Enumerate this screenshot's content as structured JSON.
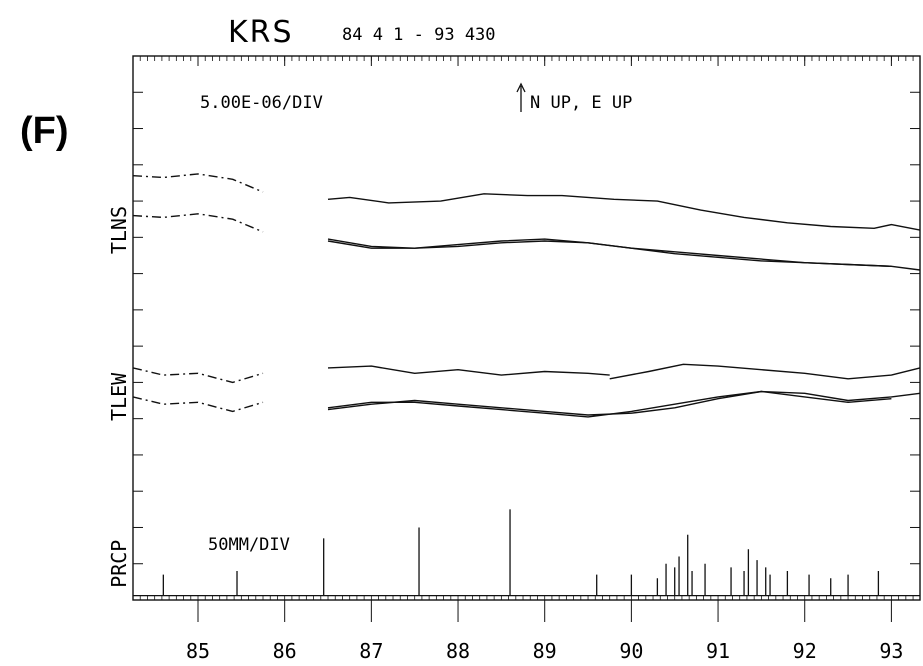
{
  "chart_data": {
    "type": "line",
    "title": "KRS",
    "subtitle": "84 4 1 - 93 430",
    "panel_label": "(F)",
    "scale_annotation": "5.00E-06/DIV",
    "direction_annotation": "N UP, E UP",
    "precip_scale_annotation": "50MM/DIV",
    "x_axis": {
      "ticks": [
        85,
        86,
        87,
        88,
        89,
        90,
        91,
        92,
        93
      ],
      "range": [
        84.25,
        93.33
      ]
    },
    "y_axis": {
      "range": [
        0,
        15
      ],
      "divisions": 15,
      "unit_per_div": "5.00E-06"
    },
    "channels": [
      {
        "name": "TLNS"
      },
      {
        "name": "TLEW"
      },
      {
        "name": "PRCP"
      }
    ],
    "series": [
      {
        "channel": "TLNS",
        "style": "dash-dot",
        "x": [
          84.25,
          84.6,
          85.0,
          85.4,
          85.75
        ],
        "y": [
          11.7,
          11.65,
          11.75,
          11.6,
          11.25
        ]
      },
      {
        "channel": "TLNS",
        "style": "dash-dot",
        "x": [
          84.25,
          84.6,
          85.0,
          85.4,
          85.75
        ],
        "y": [
          10.6,
          10.55,
          10.65,
          10.5,
          10.15
        ]
      },
      {
        "channel": "TLNS",
        "style": "solid",
        "x": [
          86.5,
          86.75,
          87.2,
          87.8,
          88.3,
          88.8,
          89.2,
          89.8,
          90.3,
          90.8,
          91.3,
          91.8,
          92.3,
          92.8,
          93.0,
          93.33
        ],
        "y": [
          11.05,
          11.1,
          10.95,
          11.0,
          11.2,
          11.15,
          11.15,
          11.05,
          11.0,
          10.75,
          10.55,
          10.4,
          10.3,
          10.25,
          10.35,
          10.2
        ]
      },
      {
        "channel": "TLNS",
        "style": "solid",
        "x": [
          86.5,
          87.0,
          87.5,
          88.0,
          88.5,
          89.0,
          89.5,
          90.0,
          90.5,
          91.0,
          91.5,
          92.0,
          92.5,
          93.0,
          93.33
        ],
        "y": [
          9.95,
          9.75,
          9.7,
          9.75,
          9.85,
          9.9,
          9.85,
          9.7,
          9.6,
          9.5,
          9.4,
          9.3,
          9.25,
          9.2,
          9.1
        ]
      },
      {
        "channel": "TLNS",
        "style": "solid",
        "x": [
          86.5,
          87.0,
          87.5,
          88.0,
          88.5,
          89.0,
          89.5,
          90.0,
          90.5,
          91.0,
          91.5,
          92.0,
          92.5,
          93.0
        ],
        "y": [
          9.9,
          9.7,
          9.7,
          9.8,
          9.9,
          9.95,
          9.85,
          9.7,
          9.55,
          9.45,
          9.35,
          9.3,
          9.25,
          9.2
        ]
      },
      {
        "channel": "TLEW",
        "style": "dash-dot",
        "x": [
          84.25,
          84.6,
          85.0,
          85.4,
          85.75
        ],
        "y": [
          6.4,
          6.2,
          6.25,
          6.0,
          6.25
        ]
      },
      {
        "channel": "TLEW",
        "style": "dash-dot",
        "x": [
          84.25,
          84.6,
          85.0,
          85.4,
          85.75
        ],
        "y": [
          5.6,
          5.4,
          5.45,
          5.2,
          5.45
        ]
      },
      {
        "channel": "TLEW",
        "style": "solid",
        "x": [
          86.5,
          87.0,
          87.5,
          88.0,
          88.5,
          89.0,
          89.5,
          89.75
        ],
        "y": [
          6.4,
          6.45,
          6.25,
          6.35,
          6.2,
          6.3,
          6.25,
          6.2
        ]
      },
      {
        "channel": "TLEW",
        "style": "solid",
        "x": [
          89.75,
          90.2,
          90.6,
          91.0,
          91.5,
          92.0,
          92.5,
          93.0,
          93.33
        ],
        "y": [
          6.1,
          6.3,
          6.5,
          6.45,
          6.35,
          6.25,
          6.1,
          6.2,
          6.4
        ]
      },
      {
        "channel": "TLEW",
        "style": "solid",
        "x": [
          86.5,
          87.0,
          87.5,
          88.0,
          88.5,
          89.0,
          89.5,
          90.0,
          90.5,
          91.0,
          91.5,
          92.0,
          92.5,
          93.0,
          93.33
        ],
        "y": [
          5.25,
          5.4,
          5.5,
          5.4,
          5.3,
          5.2,
          5.1,
          5.15,
          5.3,
          5.55,
          5.75,
          5.7,
          5.5,
          5.6,
          5.7
        ]
      },
      {
        "channel": "TLEW",
        "style": "solid",
        "x": [
          86.5,
          87.0,
          87.5,
          88.0,
          88.5,
          89.0,
          89.5,
          90.0,
          90.5,
          91.0,
          91.5,
          92.0,
          92.5,
          93.0
        ],
        "y": [
          5.3,
          5.45,
          5.45,
          5.35,
          5.25,
          5.15,
          5.05,
          5.2,
          5.4,
          5.6,
          5.75,
          5.6,
          5.45,
          5.55
        ]
      }
    ],
    "precipitation_spikes": {
      "x": [
        84.6,
        85.45,
        86.45,
        87.55,
        88.6,
        89.6,
        90.0,
        90.3,
        90.4,
        90.5,
        90.55,
        90.65,
        90.7,
        90.85,
        91.15,
        91.3,
        91.35,
        91.45,
        91.55,
        91.6,
        91.8,
        92.05,
        92.3,
        92.5,
        92.85
      ],
      "y": [
        0.7,
        0.8,
        1.7,
        2.0,
        2.5,
        0.7,
        0.7,
        0.6,
        1.0,
        0.9,
        1.2,
        1.8,
        0.8,
        1.0,
        0.9,
        0.8,
        1.4,
        1.1,
        0.9,
        0.7,
        0.8,
        0.7,
        0.6,
        0.7,
        0.8
      ]
    }
  }
}
